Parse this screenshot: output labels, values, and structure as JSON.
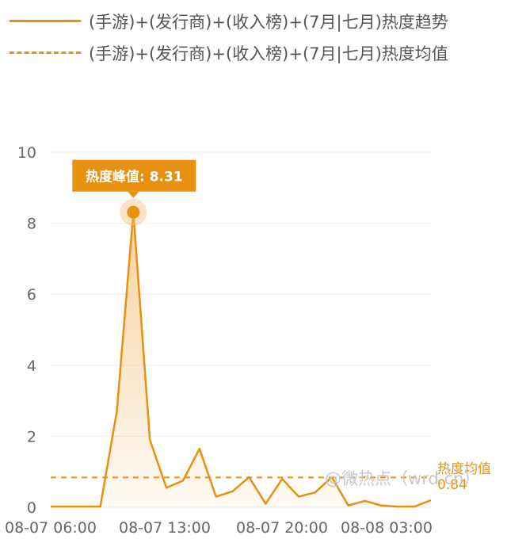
{
  "colors": {
    "line": "#e8900f",
    "fill": "#f5c27d",
    "grid": "#eeeeee",
    "text": "#666666"
  },
  "legend": [
    {
      "label": "(手游)+(发行商)+(收入榜)+(7月|七月)热度趋势",
      "style": "solid"
    },
    {
      "label": "(手游)+(发行商)+(收入榜)+(7月|七月)热度均值",
      "style": "dashed"
    }
  ],
  "peak_label": "热度峰值: 8.31",
  "mean_label": "热度均值",
  "watermark": "@微热点（wrd.cn）",
  "chart_data": {
    "type": "line",
    "y_ticks": [
      "0",
      "2",
      "4",
      "6",
      "8",
      "10"
    ],
    "ylim": [
      0,
      10
    ],
    "x_ticks": [
      "08-07 06:00",
      "08-07 13:00",
      "08-07 20:00",
      "08-08 03:00"
    ],
    "series": [
      {
        "values": [
          0.02,
          0.02,
          0.02,
          0.02,
          2.7,
          8.31,
          1.9,
          0.55,
          0.75,
          1.65,
          0.3,
          0.45,
          0.85,
          0.1,
          0.8,
          0.3,
          0.42,
          0.85,
          0.05,
          0.18,
          0.05,
          0.02,
          0.02,
          0.2
        ],
        "area": true
      }
    ],
    "mean": 0.84,
    "mean_value_label": "0.84",
    "peak_value": 8.31
  }
}
